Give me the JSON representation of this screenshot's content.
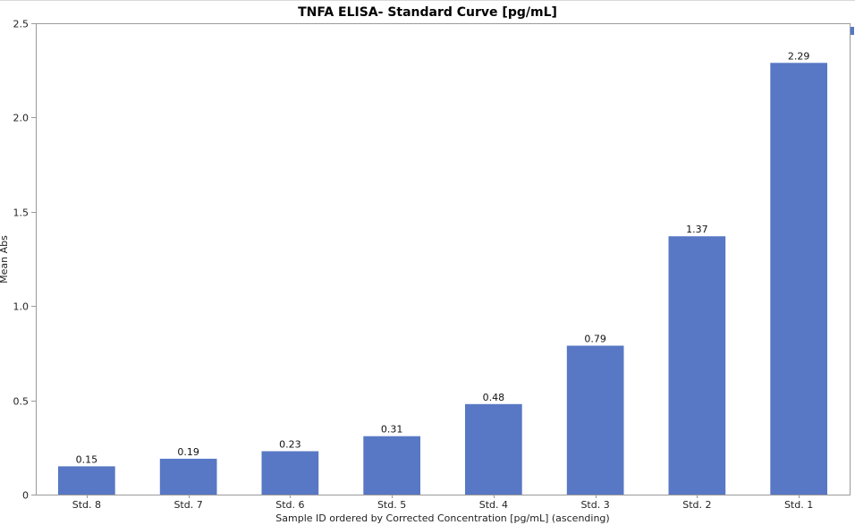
{
  "chart_data": {
    "type": "bar",
    "title": "TNFA ELISA-  Standard Curve [pg/mL]",
    "xlabel": "Sample ID ordered by Corrected Concentration [pg/mL] (ascending)",
    "ylabel": "Mean Abs",
    "categories": [
      "Std. 8",
      "Std. 7",
      "Std. 6",
      "Std. 5",
      "Std. 4",
      "Std. 3",
      "Std. 2",
      "Std. 1"
    ],
    "values": [
      0.15,
      0.19,
      0.23,
      0.31,
      0.48,
      0.79,
      1.37,
      2.29
    ],
    "data_labels": [
      "0.15",
      "0.19",
      "0.23",
      "0.31",
      "0.48",
      "0.79",
      "1.37",
      "2.29"
    ],
    "ylim": [
      0,
      2.5
    ],
    "yticks": [
      0,
      0.5,
      1.0,
      1.5,
      2.0,
      2.5
    ],
    "ytick_labels": [
      "0",
      "0.5",
      "1.0",
      "1.5",
      "2.0",
      "2.5"
    ],
    "grid": false,
    "legend": "none",
    "bar_color": "#5878c5"
  }
}
